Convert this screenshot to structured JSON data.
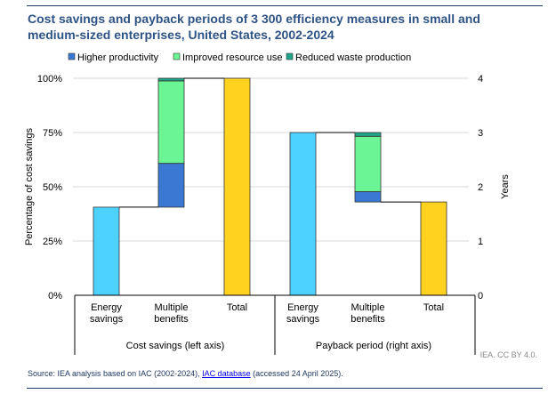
{
  "chart_data": {
    "type": "bar",
    "title": "Cost savings and payback periods of 3 300 efficiency measures in small and medium-sized enterprises, United States, 2002-2024",
    "legend": {
      "placement": "top",
      "entries": [
        {
          "name": "Higher productivity",
          "color": "#3a78d4"
        },
        {
          "name": "Improved resource use",
          "color": "#6cf594"
        },
        {
          "name": "Reduced waste production",
          "color": "#1fa68a"
        }
      ]
    },
    "left_axis": {
      "label": "Percentage of cost savings",
      "range": [
        0,
        100
      ],
      "ticks": [
        "0%",
        "25%",
        "50%",
        "75%",
        "100%"
      ]
    },
    "right_axis": {
      "label": "Years",
      "range": [
        0,
        4
      ],
      "ticks": [
        "0",
        "1",
        "2",
        "3",
        "4"
      ]
    },
    "grid": true,
    "groups": [
      {
        "label": "Cost savings (left axis)",
        "axis": "left",
        "categories": [
          "Energy savings",
          "Multiple benefits",
          "Total"
        ],
        "energy_savings": 40.6,
        "multiple_benefits": {
          "Higher productivity": 20.2,
          "Improved resource use": 38.0,
          "Reduced waste production": 1.2
        },
        "total": 100
      },
      {
        "label": "Payback period (right axis)",
        "axis": "right",
        "categories": [
          "Energy savings",
          "Multiple benefits",
          "Total"
        ],
        "energy_savings": 3.0,
        "multiple_benefits": {
          "Higher productivity": -0.19,
          "Improved resource use": -1.02,
          "Reduced waste production": -0.07
        },
        "total": 1.72
      }
    ],
    "colors": {
      "energy_savings": "#4dd2ff",
      "total": "#ffd21f"
    }
  },
  "credit": "IEA. CC BY 4.0.",
  "source": {
    "prefix": "Source: IEA analysis based on IAC (2002-2024), ",
    "link": "IAC database",
    "suffix": " (accessed 24 April 2025)."
  }
}
